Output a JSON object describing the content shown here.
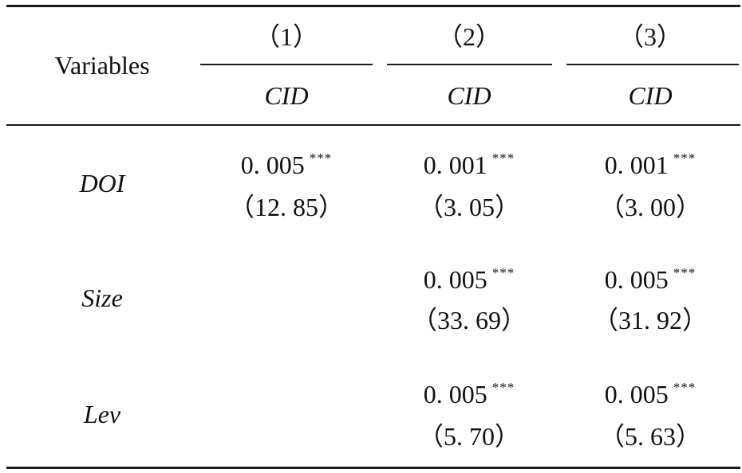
{
  "table": {
    "header": {
      "variables_label": "Variables",
      "columns": [
        {
          "number": "（1）",
          "dep_var": "CID"
        },
        {
          "number": "（2）",
          "dep_var": "CID"
        },
        {
          "number": "（3）",
          "dep_var": "CID"
        }
      ]
    },
    "rows": [
      {
        "label": "DOI",
        "cells": [
          {
            "coef": "0. 005",
            "stars": "***",
            "tstat": "（12. 85）"
          },
          {
            "coef": "0. 001",
            "stars": "***",
            "tstat": "（3. 05）"
          },
          {
            "coef": "0. 001",
            "stars": "***",
            "tstat": "（3. 00）"
          }
        ]
      },
      {
        "label": "Size",
        "cells": [
          {
            "coef": "",
            "stars": "",
            "tstat": ""
          },
          {
            "coef": "0. 005",
            "stars": "***",
            "tstat": "（33. 69）"
          },
          {
            "coef": "0. 005",
            "stars": "***",
            "tstat": "（31. 92）"
          }
        ]
      },
      {
        "label": "Lev",
        "cells": [
          {
            "coef": "",
            "stars": "",
            "tstat": ""
          },
          {
            "coef": "0. 005",
            "stars": "***",
            "tstat": "（5. 70）"
          },
          {
            "coef": "0. 005",
            "stars": "***",
            "tstat": "（5. 63）"
          }
        ]
      }
    ]
  }
}
